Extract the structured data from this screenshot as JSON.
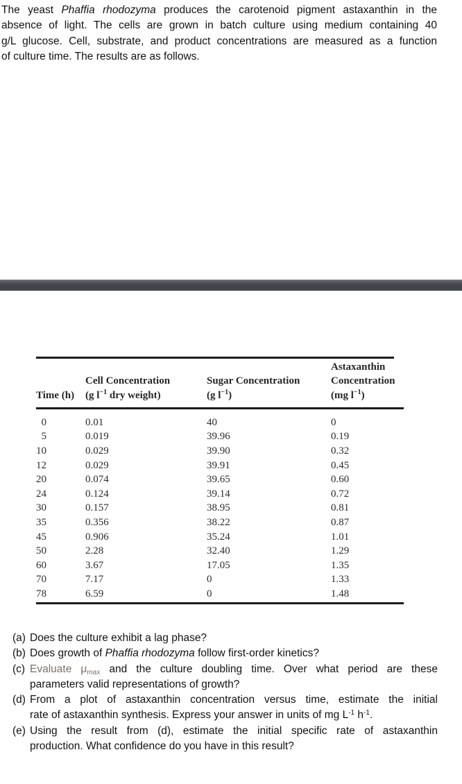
{
  "intro": {
    "line1_pre": "The yeast ",
    "line1_italic": "Phaffia rhodozyma",
    "line1_post": " produces the carotenoid pigment astaxanthin in the",
    "line2": "absence of light. The cells are grown in batch culture using medium containing 40",
    "line3": "g/L glucose. Cell, substrate, and product concentrations are measured as a function",
    "line4": "of culture time. The results are as follows."
  },
  "table": {
    "headers": {
      "time": "Time (h)",
      "cell_line1": "Cell Concentration",
      "cell_unit_pre": "(g l",
      "cell_unit_post": " dry weight)",
      "sugar_line1": "Sugar Concentration",
      "sugar_unit_pre": "(g l",
      "sugar_unit_post": ")",
      "asta_line1": "Astaxanthin",
      "asta_line2": "Concentration",
      "asta_unit_pre": "(mg l",
      "asta_unit_post": ")",
      "sup_minus1": "−1"
    },
    "rows": [
      [
        "0",
        "0.01",
        "40",
        "0"
      ],
      [
        "5",
        "0.019",
        "39.96",
        "0.19"
      ],
      [
        "10",
        "0.029",
        "39.90",
        "0.32"
      ],
      [
        "12",
        "0.029",
        "39.91",
        "0.45"
      ],
      [
        "20",
        "0.074",
        "39.65",
        "0.60"
      ],
      [
        "24",
        "0.124",
        "39.14",
        "0.72"
      ],
      [
        "30",
        "0.157",
        "38.95",
        "0.81"
      ],
      [
        "35",
        "0.356",
        "38.22",
        "0.87"
      ],
      [
        "45",
        "0.906",
        "35.24",
        "1.01"
      ],
      [
        "50",
        "2.28",
        "32.40",
        "1.29"
      ],
      [
        "60",
        "3.67",
        "17.05",
        "1.35"
      ],
      [
        "70",
        "7.17",
        "0",
        "1.33"
      ],
      [
        "78",
        "6.59",
        "0",
        "1.48"
      ]
    ]
  },
  "questions": {
    "a": {
      "label": "(a)",
      "line1": "Does the culture exhibit a lag phase?"
    },
    "b": {
      "label": "(b)",
      "pre": "Does growth of ",
      "italic": "Phaffia rhodozyma",
      "post": " follow first-order kinetics?"
    },
    "c": {
      "label": "(c)",
      "gray_pre": "Evaluate ",
      "mu": "μ",
      "mu_sub": "max",
      "line1_rest": " and the culture doubling time. Over what period are these",
      "line2": "parameters valid representations of growth?"
    },
    "d": {
      "label": "(d)",
      "line1": "From a plot of astaxanthin concentration versus time, estimate the initial",
      "line2_pre": "rate of astaxanthin synthesis. Express your answer in units of mg L",
      "sup1": "-1",
      "mid": " h",
      "sup2": "-1",
      "end": "."
    },
    "e": {
      "label": "(e)",
      "line1": "Using the result from (d), estimate the initial specific rate of astaxanthin",
      "line2": "production. What confidence do you have in this result?"
    }
  }
}
